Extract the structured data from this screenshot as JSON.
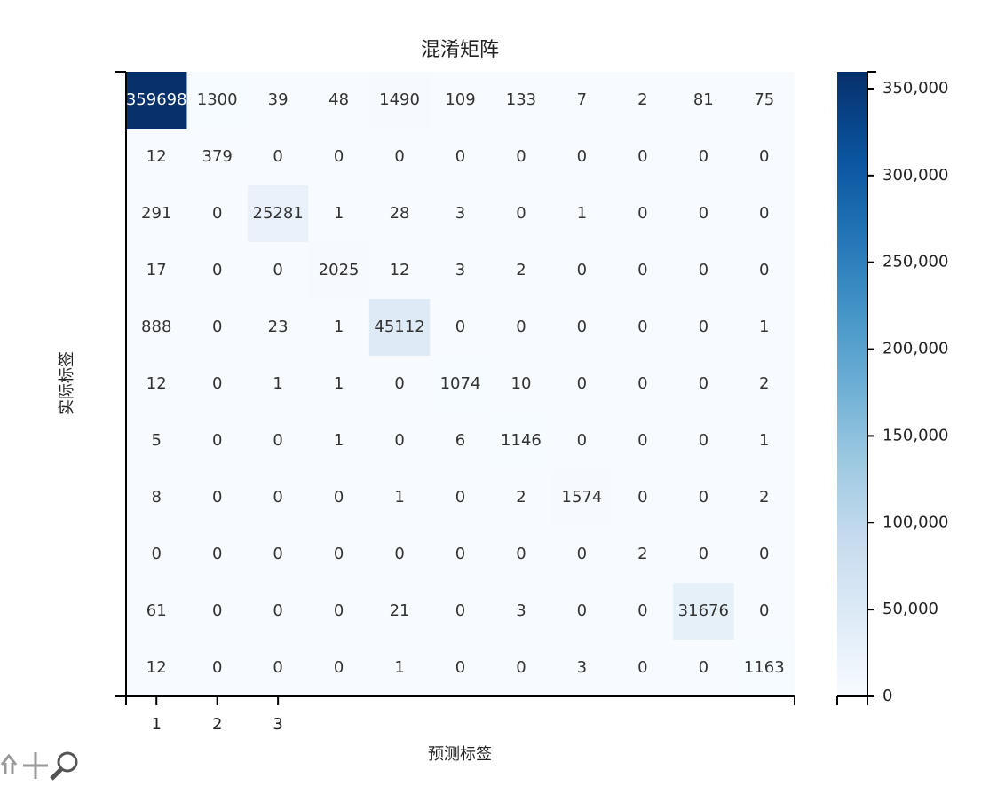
{
  "chart_data": {
    "type": "heatmap",
    "title": "混淆矩阵",
    "x_label": "预测标签",
    "y_label": "实际标签",
    "x_categories": [
      "1",
      "2",
      "3",
      null,
      null,
      null,
      null,
      null,
      null,
      null,
      null
    ],
    "matrix": [
      [
        359698,
        1300,
        39,
        48,
        1490,
        109,
        133,
        7,
        2,
        81,
        75
      ],
      [
        12,
        379,
        0,
        0,
        0,
        0,
        0,
        0,
        0,
        0,
        0
      ],
      [
        291,
        0,
        25281,
        1,
        28,
        3,
        0,
        1,
        0,
        0,
        0
      ],
      [
        17,
        0,
        0,
        2025,
        12,
        3,
        2,
        0,
        0,
        0,
        0
      ],
      [
        888,
        0,
        23,
        1,
        45112,
        0,
        0,
        0,
        0,
        0,
        1
      ],
      [
        12,
        0,
        1,
        1,
        0,
        1074,
        10,
        0,
        0,
        0,
        2
      ],
      [
        5,
        0,
        0,
        1,
        0,
        6,
        1146,
        0,
        0,
        0,
        1
      ],
      [
        8,
        0,
        0,
        0,
        1,
        0,
        2,
        1574,
        0,
        0,
        2
      ],
      [
        0,
        0,
        0,
        0,
        0,
        0,
        0,
        0,
        2,
        0,
        0
      ],
      [
        61,
        0,
        0,
        0,
        21,
        0,
        3,
        0,
        0,
        31676,
        0
      ],
      [
        12,
        0,
        0,
        0,
        1,
        0,
        0,
        3,
        0,
        0,
        1163
      ]
    ],
    "colormap": "Blues",
    "zlim": [
      0,
      359698
    ],
    "zticks": [
      0,
      {
        "value": 50000,
        "label": "50,000"
      },
      {
        "value": 100000,
        "label": "100,000"
      },
      {
        "value": 150000,
        "label": "150,000"
      },
      {
        "value": 200000,
        "label": "200,000"
      },
      {
        "value": 250000,
        "label": "250,000"
      },
      {
        "value": 300000,
        "label": "300,000"
      },
      {
        "value": 350000,
        "label": "350,000"
      }
    ]
  }
}
